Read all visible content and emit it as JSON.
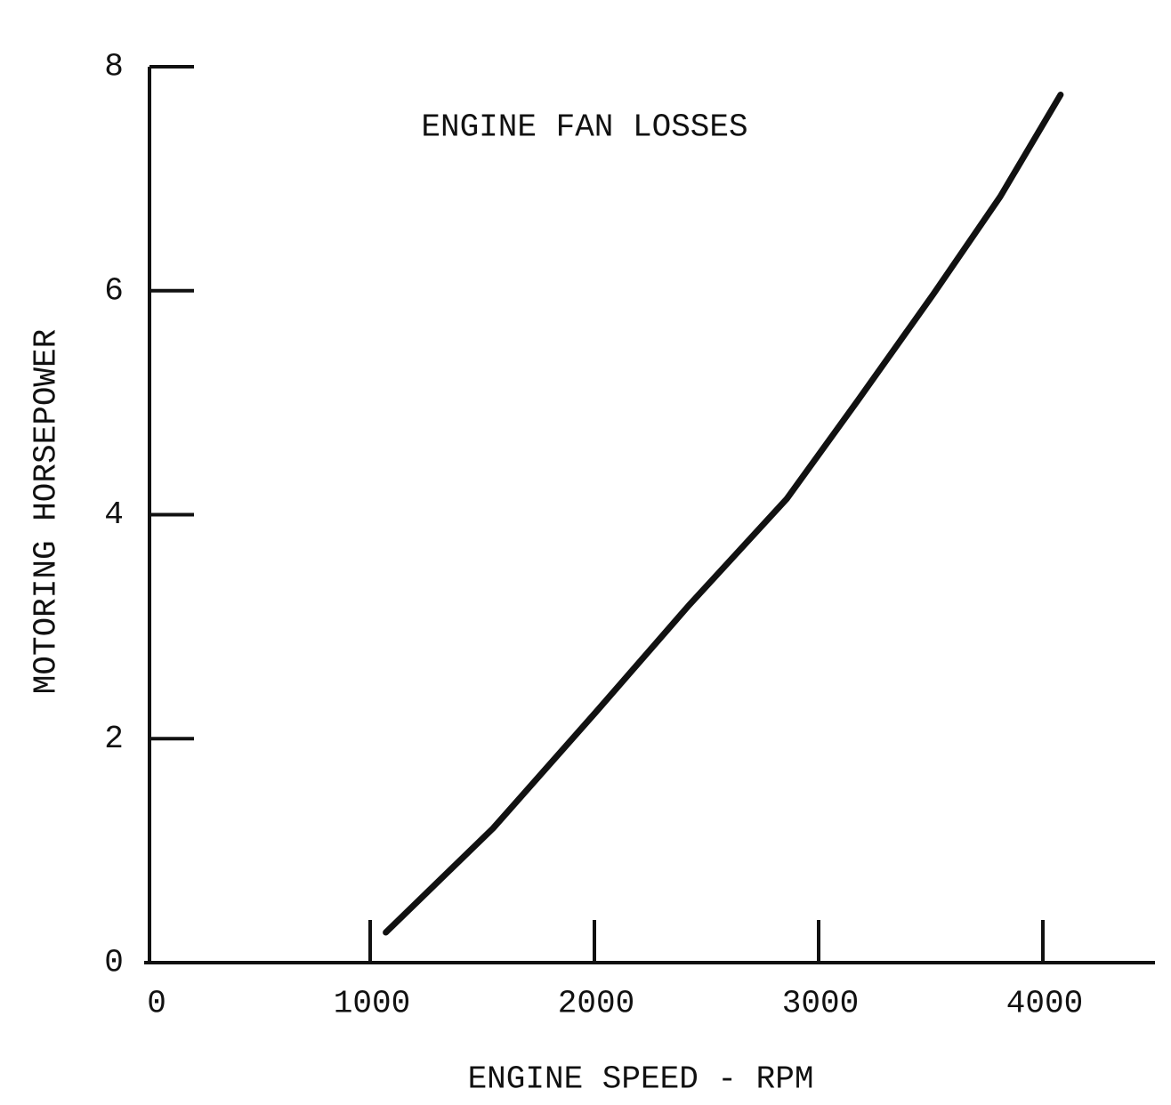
{
  "chart_data": {
    "type": "line",
    "title": "ENGINE FAN LOSSES",
    "x_label": "ENGINE SPEED - RPM",
    "y_label": "MOTORING HORSEPOWER",
    "x": [
      1070,
      1548,
      2008,
      2421,
      2857,
      3175,
      3512,
      3810,
      4079
    ],
    "series": [
      {
        "color": "#111111",
        "values": [
          0.27,
          1.2,
          2.24,
          3.19,
          4.14,
          5.02,
          5.97,
          6.84,
          7.75
        ]
      }
    ],
    "xlim": [
      0,
      4500
    ],
    "ylim": [
      0,
      8
    ],
    "xticks": [
      0,
      1000,
      2000,
      3000,
      4000
    ],
    "yticks": [
      0,
      2,
      4,
      6,
      8
    ]
  }
}
